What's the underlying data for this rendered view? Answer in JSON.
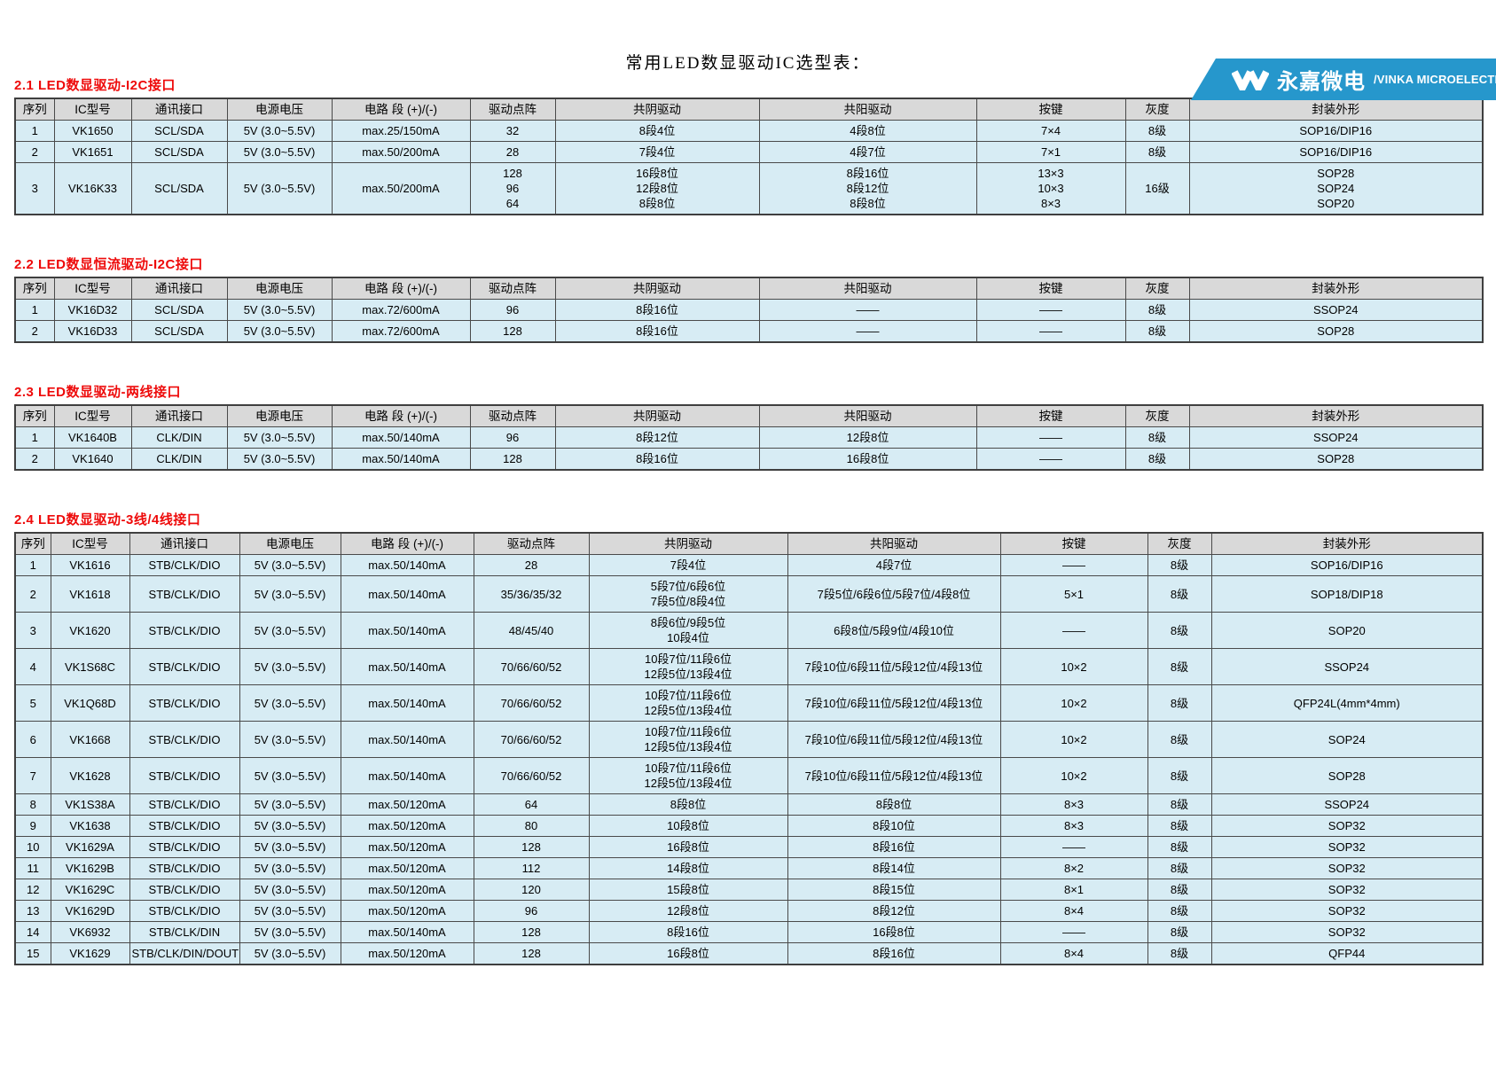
{
  "banner": {
    "brand_cn": "永嘉微电",
    "brand_en": "/VINKA MICROELECTRONICS"
  },
  "title": "常用LED数显驱动IC选型表：",
  "colors": {
    "banner_blue": "#2697cc",
    "accent_red": "#ee0a0a",
    "header_bg": "#d9d9d9",
    "row_bg": "#d7ecf4",
    "border": "#4a4a4a"
  },
  "columns": [
    "序列",
    "IC型号",
    "通讯接口",
    "电源电压",
    "电路 段 (+)/(-)",
    "驱动点阵",
    "共阴驱动",
    "共阳驱动",
    "按键",
    "灰度",
    "封装外形"
  ],
  "sections": [
    {
      "heading": "2.1 LED数显驱动-I2C接口",
      "rows": [
        [
          "1",
          "VK1650",
          "SCL/SDA",
          "5V (3.0~5.5V)",
          "max.25/150mA",
          "32",
          "8段4位",
          "4段8位",
          "7×4",
          "8级",
          "SOP16/DIP16"
        ],
        [
          "2",
          "VK1651",
          "SCL/SDA",
          "5V (3.0~5.5V)",
          "max.50/200mA",
          "28",
          "7段4位",
          "4段7位",
          "7×1",
          "8级",
          "SOP16/DIP16"
        ],
        [
          "3",
          "VK16K33",
          "SCL/SDA",
          "5V (3.0~5.5V)",
          "max.50/200mA",
          "128\n96\n64",
          "16段8位\n12段8位\n8段8位",
          "8段16位\n8段12位\n8段8位",
          "13×3\n10×3\n8×3",
          "16级",
          "SOP28\nSOP24\nSOP20"
        ]
      ]
    },
    {
      "heading": "2.2 LED数显恒流驱动-I2C接口",
      "rows": [
        [
          "1",
          "VK16D32",
          "SCL/SDA",
          "5V (3.0~5.5V)",
          "max.72/600mA",
          "96",
          "8段16位",
          "——",
          "——",
          "8级",
          "SSOP24"
        ],
        [
          "2",
          "VK16D33",
          "SCL/SDA",
          "5V (3.0~5.5V)",
          "max.72/600mA",
          "128",
          "8段16位",
          "——",
          "——",
          "8级",
          "SOP28"
        ]
      ]
    },
    {
      "heading": "2.3 LED数显驱动-两线接口",
      "rows": [
        [
          "1",
          "VK1640B",
          "CLK/DIN",
          "5V (3.0~5.5V)",
          "max.50/140mA",
          "96",
          "8段12位",
          "12段8位",
          "——",
          "8级",
          "SSOP24"
        ],
        [
          "2",
          "VK1640",
          "CLK/DIN",
          "5V (3.0~5.5V)",
          "max.50/140mA",
          "128",
          "8段16位",
          "16段8位",
          "——",
          "8级",
          "SOP28"
        ]
      ]
    },
    {
      "heading": "2.4 LED数显驱动-3线/4线接口",
      "rows": [
        [
          "1",
          "VK1616",
          "STB/CLK/DIO",
          "5V (3.0~5.5V)",
          "max.50/140mA",
          "28",
          "7段4位",
          "4段7位",
          "——",
          "8级",
          "SOP16/DIP16"
        ],
        [
          "2",
          "VK1618",
          "STB/CLK/DIO",
          "5V (3.0~5.5V)",
          "max.50/140mA",
          "35/36/35/32",
          "5段7位/6段6位\n7段5位/8段4位",
          "7段5位/6段6位/5段7位/4段8位",
          "5×1",
          "8级",
          "SOP18/DIP18"
        ],
        [
          "3",
          "VK1620",
          "STB/CLK/DIO",
          "5V (3.0~5.5V)",
          "max.50/140mA",
          "48/45/40",
          "8段6位/9段5位\n10段4位",
          "6段8位/5段9位/4段10位",
          "——",
          "8级",
          "SOP20"
        ],
        [
          "4",
          "VK1S68C",
          "STB/CLK/DIO",
          "5V (3.0~5.5V)",
          "max.50/140mA",
          "70/66/60/52",
          "10段7位/11段6位\n12段5位/13段4位",
          "7段10位/6段11位/5段12位/4段13位",
          "10×2",
          "8级",
          "SSOP24"
        ],
        [
          "5",
          "VK1Q68D",
          "STB/CLK/DIO",
          "5V (3.0~5.5V)",
          "max.50/140mA",
          "70/66/60/52",
          "10段7位/11段6位\n12段5位/13段4位",
          "7段10位/6段11位/5段12位/4段13位",
          "10×2",
          "8级",
          "QFP24L(4mm*4mm)"
        ],
        [
          "6",
          "VK1668",
          "STB/CLK/DIO",
          "5V (3.0~5.5V)",
          "max.50/140mA",
          "70/66/60/52",
          "10段7位/11段6位\n12段5位/13段4位",
          "7段10位/6段11位/5段12位/4段13位",
          "10×2",
          "8级",
          "SOP24"
        ],
        [
          "7",
          "VK1628",
          "STB/CLK/DIO",
          "5V (3.0~5.5V)",
          "max.50/140mA",
          "70/66/60/52",
          "10段7位/11段6位\n12段5位/13段4位",
          "7段10位/6段11位/5段12位/4段13位",
          "10×2",
          "8级",
          "SOP28"
        ],
        [
          "8",
          "VK1S38A",
          "STB/CLK/DIO",
          "5V (3.0~5.5V)",
          "max.50/120mA",
          "64",
          "8段8位",
          "8段8位",
          "8×3",
          "8级",
          "SSOP24"
        ],
        [
          "9",
          "VK1638",
          "STB/CLK/DIO",
          "5V (3.0~5.5V)",
          "max.50/120mA",
          "80",
          "10段8位",
          "8段10位",
          "8×3",
          "8级",
          "SOP32"
        ],
        [
          "10",
          "VK1629A",
          "STB/CLK/DIO",
          "5V (3.0~5.5V)",
          "max.50/120mA",
          "128",
          "16段8位",
          "8段16位",
          "——",
          "8级",
          "SOP32"
        ],
        [
          "11",
          "VK1629B",
          "STB/CLK/DIO",
          "5V (3.0~5.5V)",
          "max.50/120mA",
          "112",
          "14段8位",
          "8段14位",
          "8×2",
          "8级",
          "SOP32"
        ],
        [
          "12",
          "VK1629C",
          "STB/CLK/DIO",
          "5V (3.0~5.5V)",
          "max.50/120mA",
          "120",
          "15段8位",
          "8段15位",
          "8×1",
          "8级",
          "SOP32"
        ],
        [
          "13",
          "VK1629D",
          "STB/CLK/DIO",
          "5V (3.0~5.5V)",
          "max.50/120mA",
          "96",
          "12段8位",
          "8段12位",
          "8×4",
          "8级",
          "SOP32"
        ],
        [
          "14",
          "VK6932",
          "STB/CLK/DIN",
          "5V (3.0~5.5V)",
          "max.50/140mA",
          "128",
          "8段16位",
          "16段8位",
          "——",
          "8级",
          "SOP32"
        ],
        [
          "15",
          "VK1629",
          "STB/CLK/DIN/DOUT",
          "5V (3.0~5.5V)",
          "max.50/120mA",
          "128",
          "16段8位",
          "8段16位",
          "8×4",
          "8级",
          "QFP44"
        ]
      ]
    }
  ]
}
